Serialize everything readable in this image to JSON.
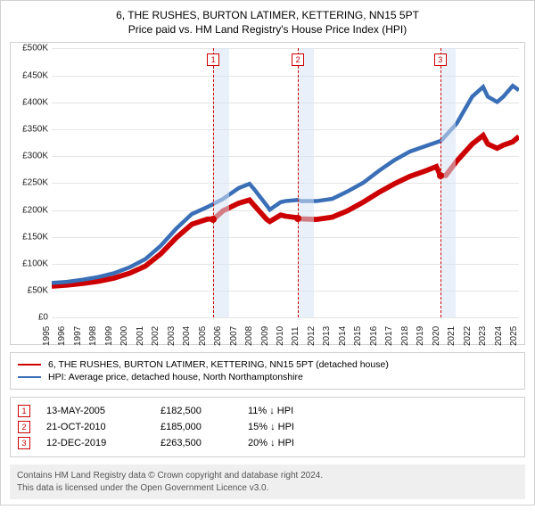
{
  "title_line1": "6, THE RUSHES, BURTON LATIMER, KETTERING, NN15 5PT",
  "title_line2": "Price paid vs. HM Land Registry's House Price Index (HPI)",
  "chart": {
    "type": "line",
    "background_color": "#ffffff",
    "grid_color": "#e4e4e4",
    "border_color": "#d0d0d0",
    "x_years": [
      "1995",
      "1996",
      "1997",
      "1998",
      "1999",
      "2000",
      "2001",
      "2002",
      "2003",
      "2004",
      "2005",
      "2006",
      "2007",
      "2008",
      "2009",
      "2010",
      "2011",
      "2012",
      "2013",
      "2014",
      "2015",
      "2016",
      "2017",
      "2018",
      "2019",
      "2020",
      "2021",
      "2022",
      "2023",
      "2024",
      "2025"
    ],
    "x_min": 1995,
    "x_max": 2025,
    "y_min": 0,
    "y_max": 500000,
    "y_step": 50000,
    "y_ticks": [
      "£0",
      "£50K",
      "£100K",
      "£150K",
      "£200K",
      "£250K",
      "£300K",
      "£350K",
      "£400K",
      "£450K",
      "£500K"
    ],
    "label_fontsize": 10,
    "series": [
      {
        "name": "price_paid",
        "label": "6, THE RUSHES, BURTON LATIMER, KETTERING, NN15 5PT (detached house)",
        "color": "#cc0000",
        "line_width": 1.8,
        "data": [
          [
            1995,
            58000
          ],
          [
            1996,
            60000
          ],
          [
            1997,
            63000
          ],
          [
            1998,
            67000
          ],
          [
            1999,
            73000
          ],
          [
            2000,
            82000
          ],
          [
            2001,
            95000
          ],
          [
            2002,
            118000
          ],
          [
            2003,
            148000
          ],
          [
            2004,
            173000
          ],
          [
            2005,
            182500
          ],
          [
            2005.4,
            182500
          ],
          [
            2006,
            198000
          ],
          [
            2007,
            212000
          ],
          [
            2007.7,
            218000
          ],
          [
            2008,
            208000
          ],
          [
            2008.8,
            182000
          ],
          [
            2009,
            178000
          ],
          [
            2009.7,
            190000
          ],
          [
            2010,
            188000
          ],
          [
            2010.8,
            185000
          ],
          [
            2011,
            183000
          ],
          [
            2012,
            182000
          ],
          [
            2013,
            186000
          ],
          [
            2014,
            198000
          ],
          [
            2015,
            214000
          ],
          [
            2016,
            232000
          ],
          [
            2017,
            248000
          ],
          [
            2018,
            262000
          ],
          [
            2019,
            272000
          ],
          [
            2019.7,
            280000
          ],
          [
            2019.95,
            263500
          ],
          [
            2020.3,
            263500
          ],
          [
            2021,
            290000
          ],
          [
            2022,
            322000
          ],
          [
            2022.7,
            338000
          ],
          [
            2023,
            322000
          ],
          [
            2023.6,
            314000
          ],
          [
            2024,
            320000
          ],
          [
            2024.6,
            326000
          ],
          [
            2025,
            336000
          ]
        ]
      },
      {
        "name": "hpi",
        "label": "HPI: Average price, detached house, North Northamptonshire",
        "color": "#3a6fb7",
        "line_width": 1.4,
        "data": [
          [
            1995,
            64000
          ],
          [
            1996,
            66000
          ],
          [
            1997,
            70000
          ],
          [
            1998,
            75000
          ],
          [
            1999,
            82000
          ],
          [
            2000,
            93000
          ],
          [
            2001,
            108000
          ],
          [
            2002,
            133000
          ],
          [
            2003,
            165000
          ],
          [
            2004,
            192000
          ],
          [
            2005,
            205000
          ],
          [
            2006,
            220000
          ],
          [
            2007,
            240000
          ],
          [
            2007.7,
            248000
          ],
          [
            2008,
            238000
          ],
          [
            2008.8,
            208000
          ],
          [
            2009,
            200000
          ],
          [
            2009.7,
            214000
          ],
          [
            2010,
            216000
          ],
          [
            2010.8,
            218000
          ],
          [
            2011,
            216000
          ],
          [
            2012,
            216000
          ],
          [
            2013,
            220000
          ],
          [
            2014,
            234000
          ],
          [
            2015,
            250000
          ],
          [
            2016,
            272000
          ],
          [
            2017,
            292000
          ],
          [
            2018,
            308000
          ],
          [
            2019,
            318000
          ],
          [
            2020,
            328000
          ],
          [
            2021,
            360000
          ],
          [
            2022,
            410000
          ],
          [
            2022.7,
            428000
          ],
          [
            2023,
            410000
          ],
          [
            2023.6,
            400000
          ],
          [
            2024,
            410000
          ],
          [
            2024.6,
            430000
          ],
          [
            2025,
            422000
          ]
        ]
      }
    ],
    "markers": [
      {
        "n": "1",
        "x": 2005.37,
        "price": 182500,
        "color": "#cc0000",
        "band_start": 2005.37,
        "band_end": 2006.37
      },
      {
        "n": "2",
        "x": 2010.81,
        "price": 185000,
        "color": "#cc0000",
        "band_start": 2010.81,
        "band_end": 2011.81
      },
      {
        "n": "3",
        "x": 2019.95,
        "price": 263500,
        "color": "#cc0000",
        "band_start": 2019.95,
        "band_end": 2020.95
      }
    ],
    "band_color": "#d7e4f4"
  },
  "legend": [
    {
      "color": "#cc0000",
      "label": "6, THE RUSHES, BURTON LATIMER, KETTERING, NN15 5PT (detached house)"
    },
    {
      "color": "#3a6fb7",
      "label": "HPI: Average price, detached house, North Northamptonshire"
    }
  ],
  "transactions": [
    {
      "n": "1",
      "color": "#cc0000",
      "date": "13-MAY-2005",
      "price": "£182,500",
      "delta": "11% ↓ HPI"
    },
    {
      "n": "2",
      "color": "#cc0000",
      "date": "21-OCT-2010",
      "price": "£185,000",
      "delta": "15% ↓ HPI"
    },
    {
      "n": "3",
      "color": "#cc0000",
      "date": "12-DEC-2019",
      "price": "£263,500",
      "delta": "20% ↓ HPI"
    }
  ],
  "footer_line1": "Contains HM Land Registry data © Crown copyright and database right 2024.",
  "footer_line2": "This data is licensed under the Open Government Licence v3.0."
}
